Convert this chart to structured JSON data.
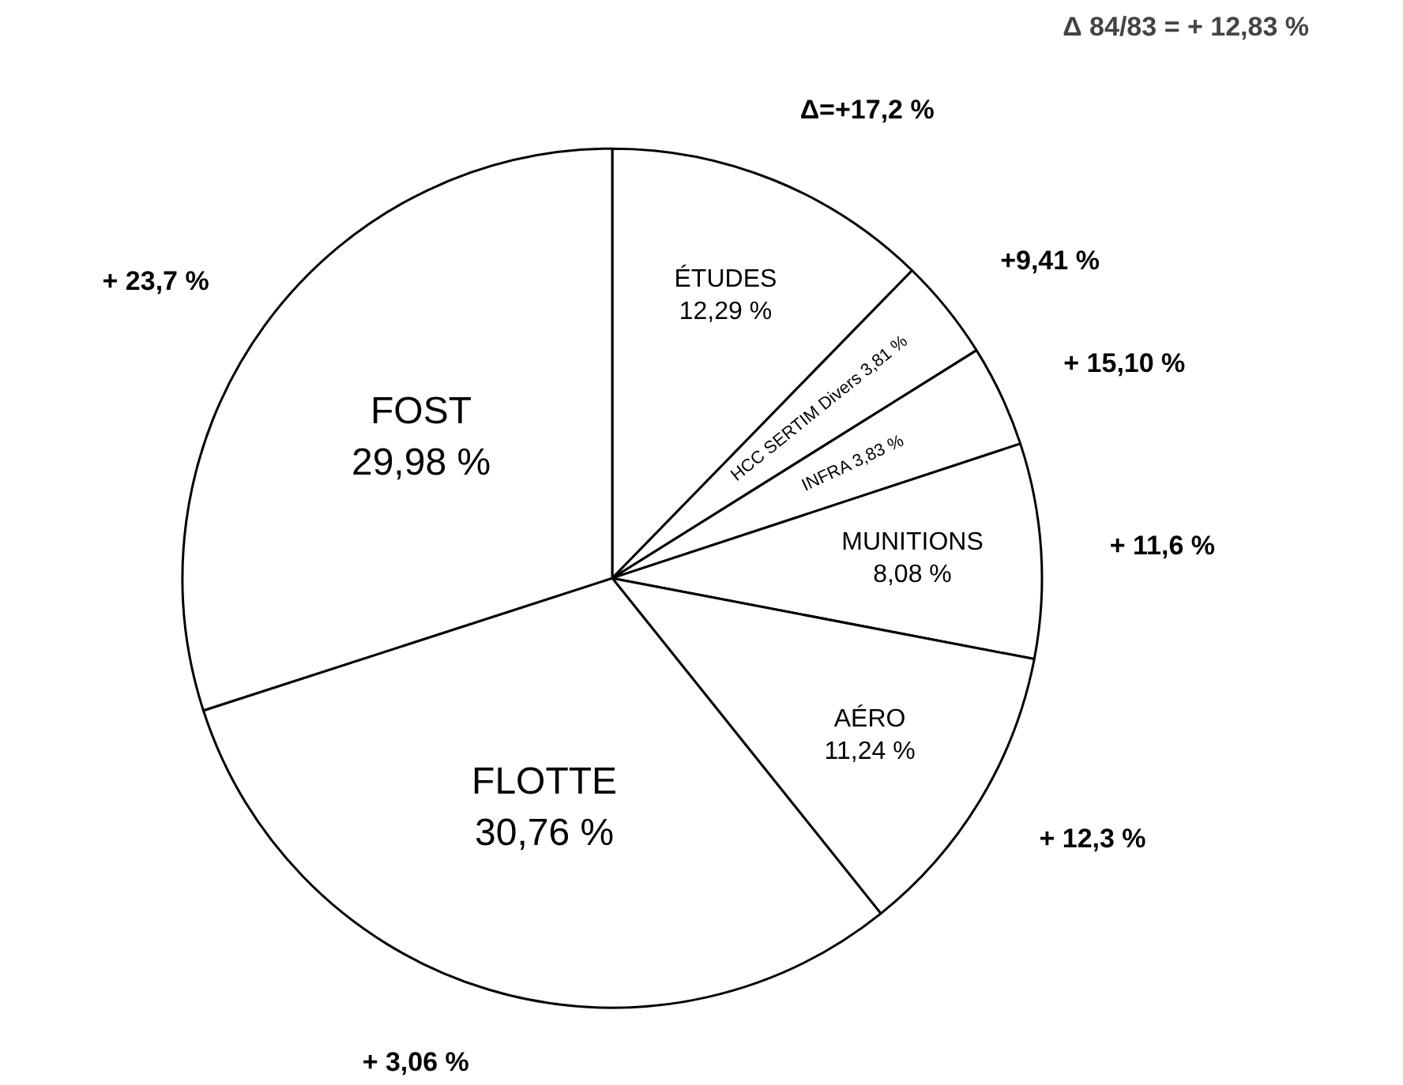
{
  "chart_data": {
    "type": "pie",
    "title": "Δ 84/83 = + 12,83 %",
    "categories": [
      "ÉTUDES",
      "HCC SERTIM Divers",
      "INFRA",
      "MUNITIONS",
      "AÉRO",
      "FLOTTE",
      "FOST"
    ],
    "values": [
      12.29,
      3.81,
      3.83,
      8.08,
      11.24,
      30.76,
      29.98
    ],
    "value_labels": [
      "12,29 %",
      "3,81 %",
      "3,83 %",
      "8,08 %",
      "11,24 %",
      "30,76 %",
      "29,98 %"
    ],
    "colors": [
      "#ffffff",
      "#ffffff",
      "#ffffff",
      "#ffffff",
      "#ffffff",
      "#ffffff",
      "#ffffff"
    ],
    "annotations": [
      "Δ=+17,2 %",
      "+9,41 %",
      "+ 15,10 %",
      "+ 11,6 %",
      "+ 12,3 %",
      "+ 3,06 %",
      "+ 23,7 %"
    ],
    "legend": false
  }
}
